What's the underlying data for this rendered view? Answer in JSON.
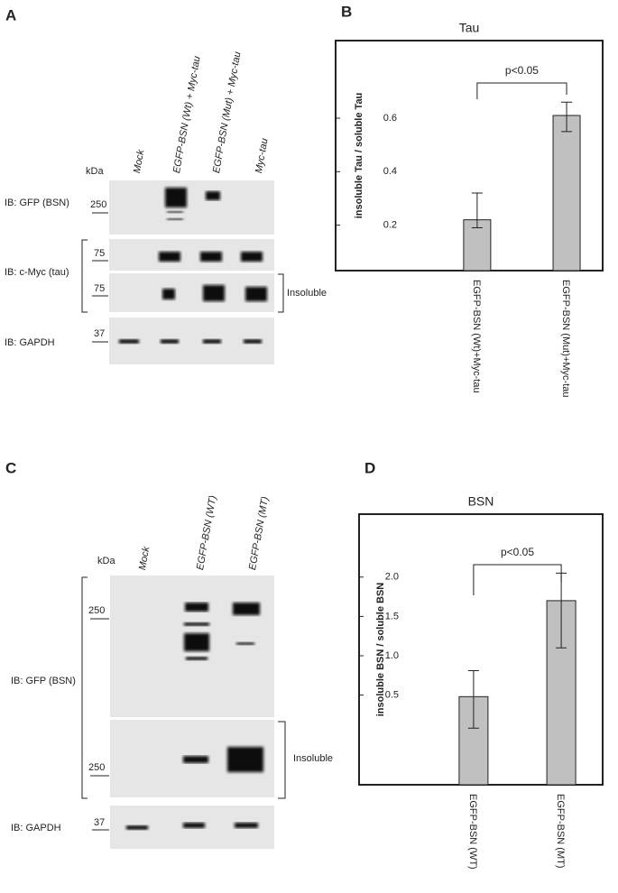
{
  "blot_a": {
    "label": "A",
    "kda": "kDa",
    "lanes": [
      "Mock",
      "EGFP-BSN (Wt) + Myc-tau",
      "EGFP-BSN (Mut) + Myc-tau",
      "Myc-tau"
    ],
    "rows": {
      "gfp": "IB: GFP (BSN)",
      "cmyc": "IB: c-Myc (tau)",
      "gapdh": "IB: GAPDH"
    },
    "markers": [
      "250",
      "75",
      "75",
      "37"
    ],
    "insoluble": "Insoluble"
  },
  "blot_c": {
    "label": "C",
    "kda": "kDa",
    "lanes": [
      "Mock",
      "EGFP-BSN (WT)",
      "EGFP-BSN (MT)"
    ],
    "rows": {
      "gfp": "IB: GFP (BSN)",
      "gapdh": "IB: GAPDH"
    },
    "markers": [
      "250",
      "250",
      "37"
    ],
    "insoluble": "Insoluble"
  },
  "chart_data": [
    {
      "type": "bar",
      "panel": "B",
      "title": "Tau",
      "ylabel": "insoluble Tau / soluble Tau",
      "categories": [
        "EGFP-BSN (Wt)+Myc-tau",
        "EGFP-BSN (Mut)+Myc-tau"
      ],
      "values": [
        0.22,
        0.61
      ],
      "error_plus": [
        0.1,
        0.05
      ],
      "error_minus": [
        0.03,
        0.06
      ],
      "color": "#c0c0c0",
      "ylim": [
        0.03,
        0.89
      ],
      "yticks": [
        0.2,
        0.4,
        0.6
      ],
      "annotation": "p<0.05"
    },
    {
      "type": "bar",
      "panel": "D",
      "title": "BSN",
      "ylabel": "insoluble BSN / soluble BSN",
      "categories": [
        "EGFP-BSN (WT)",
        "EGFP-BSN (MT)"
      ],
      "values": [
        0.48,
        1.7
      ],
      "error_plus": [
        0.33,
        0.35
      ],
      "error_minus": [
        0.4,
        0.6
      ],
      "color": "#c0c0c0",
      "ylim": [
        -0.64,
        2.8
      ],
      "yticks": [
        0.5,
        {
          "value": 1,
          "label": "1.0"
        },
        1.5,
        {
          "value": 2,
          "label": "2.0"
        }
      ],
      "annotation": "p<0.05"
    }
  ]
}
